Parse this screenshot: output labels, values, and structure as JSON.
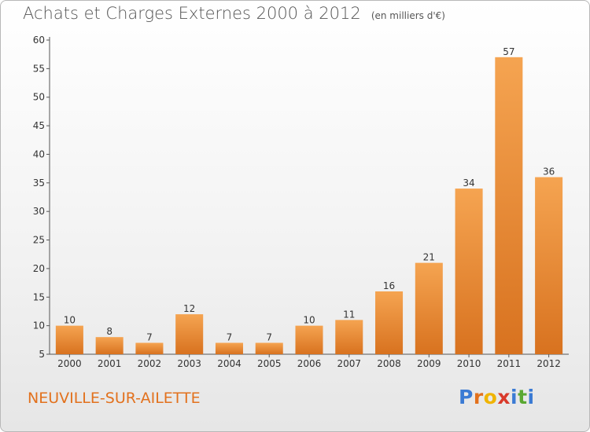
{
  "title": "Achats et Charges Externes 2000 à 2012",
  "subtitle": "(en milliers d'€)",
  "commune": "NEUVILLE-SUR-AILETTE",
  "logo": {
    "letters": [
      "P",
      "r",
      "o",
      "x",
      "i",
      "t",
      "i"
    ],
    "colors": [
      "#3b7bd4",
      "#e2711d",
      "#f0b400",
      "#d93a2b",
      "#3b7bd4",
      "#5aa832",
      "#3b7bd4"
    ]
  },
  "colors": {
    "bar_light": "#f5a451",
    "bar_dark": "#d8721f",
    "commune": "#e2711d"
  },
  "chart_data": {
    "type": "bar",
    "categories": [
      "2000",
      "2001",
      "2002",
      "2003",
      "2004",
      "2005",
      "2006",
      "2007",
      "2008",
      "2009",
      "2010",
      "2011",
      "2012"
    ],
    "values": [
      10,
      8,
      7,
      12,
      7,
      7,
      10,
      11,
      16,
      21,
      34,
      57,
      36
    ],
    "yticks": [
      5,
      10,
      15,
      20,
      25,
      30,
      35,
      40,
      45,
      50,
      55,
      60
    ],
    "ylim": [
      5,
      60
    ],
    "grid": false,
    "data_labels": true
  }
}
